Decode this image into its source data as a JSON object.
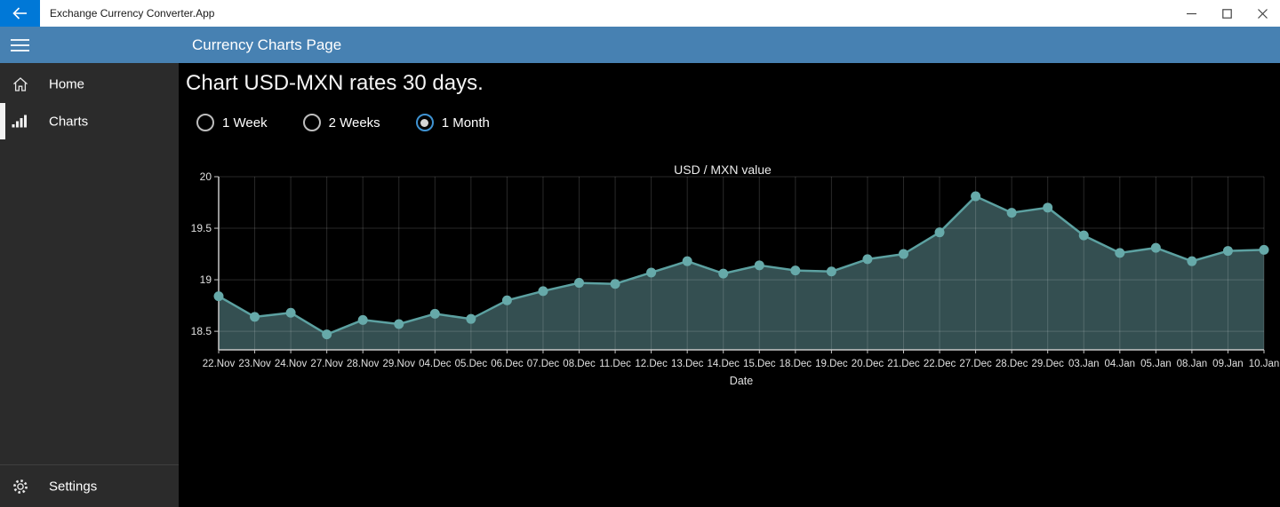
{
  "theme": {
    "accent": "#0078d7",
    "header_blue": "#4781b2",
    "sidebar_bg": "#2b2b2b",
    "content_bg": "#000000",
    "titlebar_bg": "#ffffff",
    "radio_ring": "#3f93d2"
  },
  "titlebar": {
    "app_title": "Exchange Currency Converter.App",
    "back_icon": "arrow-left",
    "minimize_icon": "minimize-dash",
    "maximize_icon": "maximize-square",
    "close_icon": "close-x"
  },
  "header": {
    "menu_icon": "hamburger-menu",
    "title": "Currency Charts Page"
  },
  "sidebar": {
    "items": [
      {
        "label": "Home",
        "icon": "home-icon",
        "selected": false
      },
      {
        "label": "Charts",
        "icon": "bar-chart-icon",
        "selected": true
      }
    ],
    "settings": {
      "label": "Settings",
      "icon": "gear-icon"
    }
  },
  "main": {
    "heading": "Chart USD-MXN rates 30 days.",
    "range_options": [
      {
        "label": "1 Week",
        "selected": false
      },
      {
        "label": "2 Weeks",
        "selected": false
      },
      {
        "label": "1 Month",
        "selected": true
      }
    ]
  },
  "chart_data": {
    "type": "area",
    "title": "USD / MXN value",
    "xlabel": "Date",
    "ylabel": "",
    "x": [
      "22.Nov",
      "23.Nov",
      "24.Nov",
      "27.Nov",
      "28.Nov",
      "29.Nov",
      "04.Dec",
      "05.Dec",
      "06.Dec",
      "07.Dec",
      "08.Dec",
      "11.Dec",
      "12.Dec",
      "13.Dec",
      "14.Dec",
      "15.Dec",
      "18.Dec",
      "19.Dec",
      "20.Dec",
      "21.Dec",
      "22.Dec",
      "27.Dec",
      "28.Dec",
      "29.Dec",
      "03.Jan",
      "04.Jan",
      "05.Jan",
      "08.Jan",
      "09.Jan",
      "10.Jan"
    ],
    "values": [
      18.84,
      18.64,
      18.68,
      18.47,
      18.61,
      18.57,
      18.67,
      18.62,
      18.8,
      18.89,
      18.97,
      18.96,
      19.07,
      19.18,
      19.06,
      19.14,
      19.09,
      19.08,
      19.2,
      19.25,
      19.46,
      19.81,
      19.65,
      19.7,
      19.43,
      19.26,
      19.31,
      19.18,
      19.28,
      19.29
    ],
    "yticks": [
      20,
      19.5,
      19,
      18.5
    ],
    "ytick_labels": [
      "20",
      "19.5",
      "19",
      "18.5"
    ],
    "ylim": [
      18.32,
      20
    ],
    "grid": true,
    "legend": false,
    "marker": "circle",
    "colors": {
      "area_fill": "#344f51",
      "line": "#5ca1a1",
      "marker": "#66a9a9",
      "grid": "rgba(255,255,255,0.16)",
      "axis": "#c8c8c8",
      "tick_text": "#e0e0e0",
      "title_text": "#ececec"
    }
  }
}
